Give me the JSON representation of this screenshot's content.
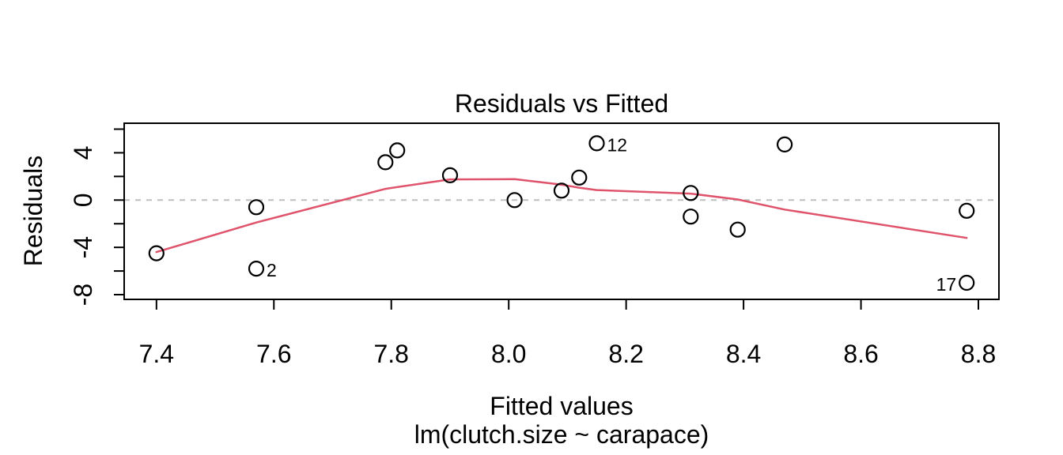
{
  "figure": {
    "title": "Residuals vs Fitted",
    "xlabel": "Fitted values",
    "xlabel_sub": "lm(clutch.size ~ carapace)",
    "ylabel": "Residuals"
  },
  "chart_data": {
    "type": "scatter",
    "title": "Residuals vs Fitted",
    "xlabel": "Fitted values",
    "model_caption": "lm(clutch.size ~ carapace)",
    "ylabel": "Residuals",
    "xlim": [
      7.345,
      8.835
    ],
    "ylim": [
      -8.4,
      6.5
    ],
    "grid": false,
    "x_ticks": [
      {
        "v": 7.4,
        "label": "7.4"
      },
      {
        "v": 7.6,
        "label": "7.6"
      },
      {
        "v": 7.8,
        "label": "7.8"
      },
      {
        "v": 8.0,
        "label": "8.0"
      },
      {
        "v": 8.2,
        "label": "8.2"
      },
      {
        "v": 8.4,
        "label": "8.4"
      },
      {
        "v": 8.6,
        "label": "8.6"
      },
      {
        "v": 8.8,
        "label": "8.8"
      }
    ],
    "y_ticks": [
      {
        "v": -8,
        "label": "-8"
      },
      {
        "v": -6,
        "label": ""
      },
      {
        "v": -4,
        "label": "-4"
      },
      {
        "v": -2,
        "label": ""
      },
      {
        "v": 0,
        "label": "0"
      },
      {
        "v": 2,
        "label": ""
      },
      {
        "v": 4,
        "label": "4"
      },
      {
        "v": 6,
        "label": ""
      }
    ],
    "zero_line_y": 0,
    "points": [
      {
        "x": 7.4,
        "y": -4.5
      },
      {
        "x": 7.57,
        "y": -5.8,
        "label": "2",
        "label_side": "right"
      },
      {
        "x": 7.57,
        "y": -0.6
      },
      {
        "x": 7.79,
        "y": 3.2
      },
      {
        "x": 7.81,
        "y": 4.2
      },
      {
        "x": 7.9,
        "y": 2.1
      },
      {
        "x": 8.01,
        "y": 0.0
      },
      {
        "x": 8.09,
        "y": 0.8
      },
      {
        "x": 8.12,
        "y": 1.9
      },
      {
        "x": 8.15,
        "y": 4.8,
        "label": "12",
        "label_side": "right"
      },
      {
        "x": 8.31,
        "y": 0.6
      },
      {
        "x": 8.31,
        "y": -1.4
      },
      {
        "x": 8.39,
        "y": -2.5
      },
      {
        "x": 8.47,
        "y": 4.7
      },
      {
        "x": 8.78,
        "y": -0.9
      },
      {
        "x": 8.78,
        "y": -7.0,
        "label": "17",
        "label_side": "left"
      }
    ],
    "smoother": {
      "name": "lowess",
      "path": [
        [
          7.4,
          -4.4
        ],
        [
          7.57,
          -1.9
        ],
        [
          7.79,
          0.95
        ],
        [
          7.81,
          1.1
        ],
        [
          7.9,
          1.75
        ],
        [
          8.01,
          1.77
        ],
        [
          8.09,
          1.3
        ],
        [
          8.12,
          1.05
        ],
        [
          8.15,
          0.85
        ],
        [
          8.31,
          0.55
        ],
        [
          8.39,
          0.05
        ],
        [
          8.47,
          -0.8
        ],
        [
          8.78,
          -3.2
        ]
      ]
    },
    "colors": {
      "point": "#000000",
      "smoother": "#DF536B",
      "zero_line": "#BEBEBE",
      "frame": "#000000",
      "text": "#000000",
      "background": "#FFFFFF"
    }
  }
}
